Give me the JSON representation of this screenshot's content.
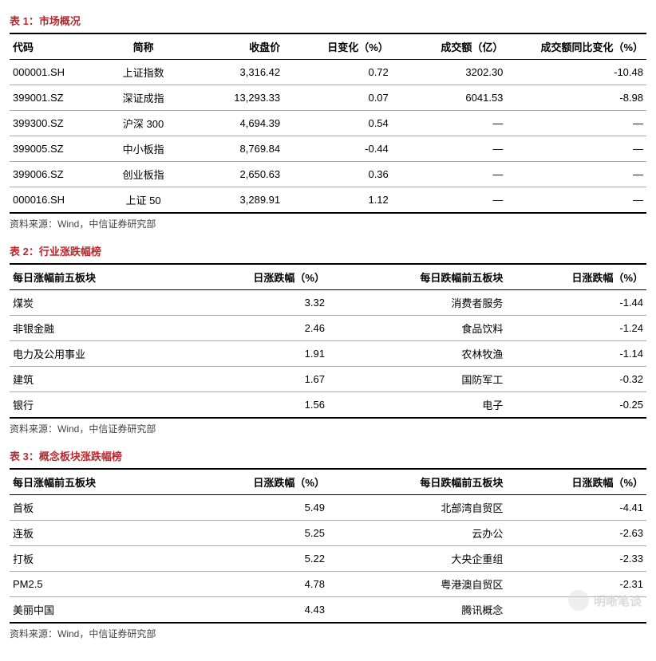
{
  "source_text": "资料来源：Wind，中信证券研究部",
  "watermark": "明晰笔谈",
  "table1": {
    "title": "表 1：市场概况",
    "columns": [
      "代码",
      "简称",
      "收盘价",
      "日变化（%）",
      "成交额（亿）",
      "成交额同比变化（%）"
    ],
    "col_widths": [
      "14%",
      "14%",
      "15%",
      "17%",
      "18%",
      "22%"
    ],
    "col_aligns": [
      "al",
      "ac",
      "r",
      "r",
      "r",
      "r"
    ],
    "rows": [
      [
        "000001.SH",
        "上证指数",
        "3,316.42",
        "0.72",
        "3202.30",
        "-10.48"
      ],
      [
        "399001.SZ",
        "深证成指",
        "13,293.33",
        "0.07",
        "6041.53",
        "-8.98"
      ],
      [
        "399300.SZ",
        "沪深 300",
        "4,694.39",
        "0.54",
        "—",
        "—"
      ],
      [
        "399005.SZ",
        "中小板指",
        "8,769.84",
        "-0.44",
        "—",
        "—"
      ],
      [
        "399006.SZ",
        "创业板指",
        "2,650.63",
        "0.36",
        "—",
        "—"
      ],
      [
        "000016.SH",
        "上证 50",
        "3,289.91",
        "1.12",
        "—",
        "—"
      ]
    ]
  },
  "table2": {
    "title": "表 2：行业涨跌幅榜",
    "columns": [
      "每日涨幅前五板块",
      "日涨跌幅（%）",
      "每日跌幅前五板块",
      "日涨跌幅（%）"
    ],
    "col_widths": [
      "28%",
      "22%",
      "28%",
      "22%"
    ],
    "col_aligns": [
      "al",
      "r",
      "r",
      "r"
    ],
    "rows": [
      [
        "煤炭",
        "3.32",
        "消费者服务",
        "-1.44"
      ],
      [
        "非银金融",
        "2.46",
        "食品饮料",
        "-1.24"
      ],
      [
        "电力及公用事业",
        "1.91",
        "农林牧渔",
        "-1.14"
      ],
      [
        "建筑",
        "1.67",
        "国防军工",
        "-0.32"
      ],
      [
        "银行",
        "1.56",
        "电子",
        "-0.25"
      ]
    ]
  },
  "table3": {
    "title": "表 3：概念板块涨跌幅榜",
    "columns": [
      "每日涨幅前五板块",
      "日涨跌幅（%）",
      "每日跌幅前五板块",
      "日涨跌幅（%）"
    ],
    "col_widths": [
      "28%",
      "22%",
      "28%",
      "22%"
    ],
    "col_aligns": [
      "al",
      "r",
      "r",
      "r"
    ],
    "rows": [
      [
        "首板",
        "5.49",
        "北部湾自贸区",
        "-4.41"
      ],
      [
        "连板",
        "5.25",
        "云办公",
        "-2.63"
      ],
      [
        "打板",
        "5.22",
        "大央企重组",
        "-2.33"
      ],
      [
        "PM2.5",
        "4.78",
        "粤港澳自贸区",
        "-2.31"
      ],
      [
        "美丽中国",
        "4.43",
        "腾讯概念",
        ""
      ]
    ]
  }
}
